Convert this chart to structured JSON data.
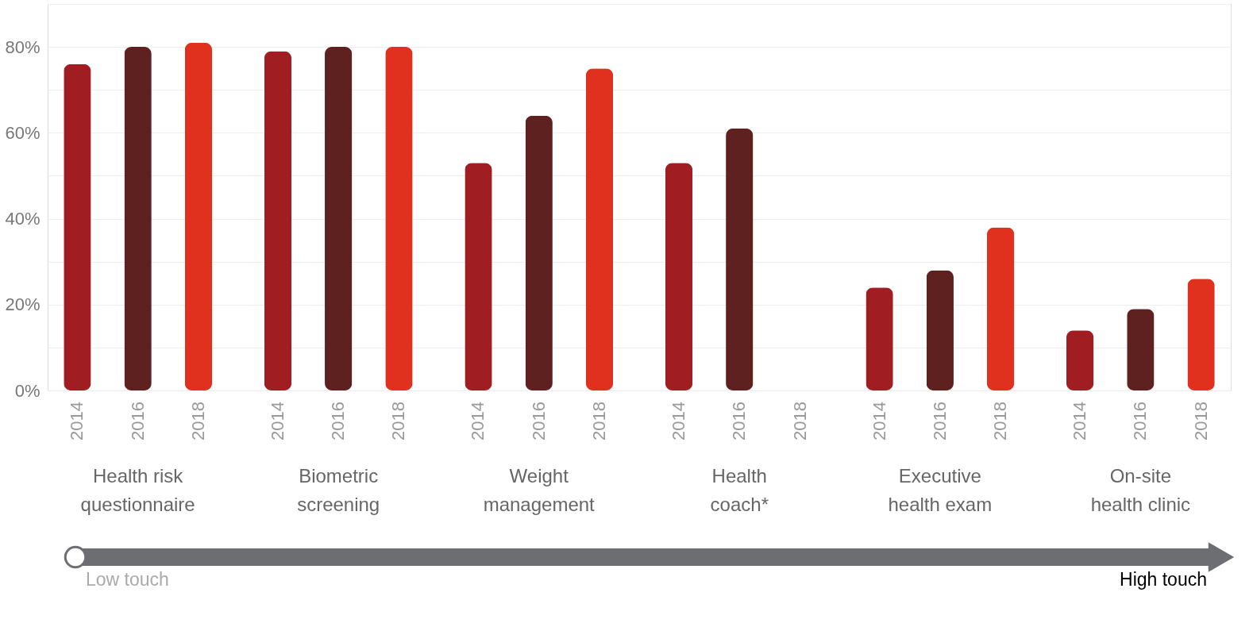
{
  "chart_data": {
    "type": "bar",
    "categories": [
      "Health risk questionnaire",
      "Biometric screening",
      "Weight management",
      "Health coach*",
      "Executive health exam",
      "On-site health clinic"
    ],
    "series": [
      {
        "name": "2014",
        "color": "#a01e22",
        "values": [
          76,
          79,
          53,
          53,
          24,
          14
        ]
      },
      {
        "name": "2016",
        "color": "#5e2120",
        "values": [
          80,
          80,
          64,
          61,
          28,
          19
        ]
      },
      {
        "name": "2018",
        "color": "#e0301e",
        "values": [
          81,
          80,
          75,
          null,
          38,
          26
        ]
      }
    ],
    "ylim": [
      0,
      90
    ],
    "yticks": [
      {
        "value": 0,
        "label": "0%"
      },
      {
        "value": 10,
        "label": null
      },
      {
        "value": 20,
        "label": "20%"
      },
      {
        "value": 30,
        "label": null
      },
      {
        "value": 40,
        "label": "40%"
      },
      {
        "value": 50,
        "label": null
      },
      {
        "value": 60,
        "label": "60%"
      },
      {
        "value": 70,
        "label": null
      },
      {
        "value": 80,
        "label": "80%"
      },
      {
        "value": 90,
        "label": null
      }
    ],
    "grid": true,
    "legend": false,
    "annotations": [
      "Low touch",
      "High touch"
    ]
  }
}
